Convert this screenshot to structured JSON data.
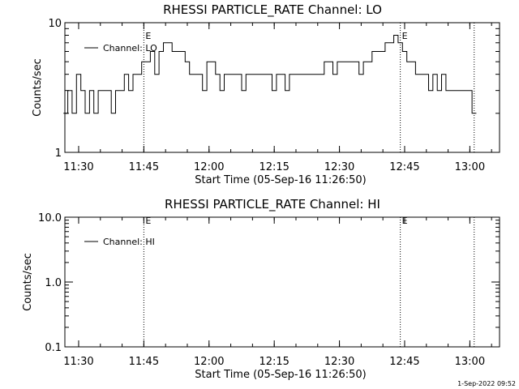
{
  "footer_timestamp": "1-Sep-2022 09:52",
  "chart_data": [
    {
      "type": "line",
      "title": "RHESSI PARTICLE_RATE Channel: LO",
      "xlabel": "Start Time (05-Sep-16 11:26:50)",
      "ylabel": "Counts/sec",
      "yscale": "log",
      "ylim": [
        1,
        10
      ],
      "ytick_values": [
        1,
        10
      ],
      "ytick_labels": [
        "1",
        "10"
      ],
      "xlim": [
        "11:26:50",
        "13:06:50"
      ],
      "xtick_values": [
        "11:30",
        "11:45",
        "12:00",
        "12:15",
        "12:30",
        "12:45",
        "13:00"
      ],
      "xtick_labels": [
        "11:30",
        "11:45",
        "12:00",
        "12:15",
        "12:30",
        "12:45",
        "13:00"
      ],
      "markers": [
        {
          "time": "11:45",
          "label": "E"
        },
        {
          "time": "12:44",
          "label": "E"
        },
        {
          "time": "13:01",
          "label": ""
        }
      ],
      "series": [
        {
          "name": "Channel: LO",
          "x": [
            "11:27",
            "11:28",
            "11:29",
            "11:30",
            "11:31",
            "11:32",
            "11:33",
            "11:34",
            "11:35",
            "11:36",
            "11:37",
            "11:38",
            "11:39",
            "11:40",
            "11:41",
            "11:42",
            "11:43",
            "11:44",
            "11:45",
            "11:46",
            "11:47",
            "11:48",
            "11:49",
            "11:50",
            "11:51",
            "11:52",
            "11:53",
            "11:54",
            "11:55",
            "11:56",
            "11:57",
            "11:58",
            "11:59",
            "12:00",
            "12:01",
            "12:02",
            "12:03",
            "12:04",
            "12:05",
            "12:06",
            "12:07",
            "12:08",
            "12:09",
            "12:10",
            "12:11",
            "12:12",
            "12:13",
            "12:14",
            "12:15",
            "12:16",
            "12:17",
            "12:18",
            "12:19",
            "12:20",
            "12:21",
            "12:22",
            "12:23",
            "12:24",
            "12:25",
            "12:26",
            "12:27",
            "12:28",
            "12:29",
            "12:30",
            "12:31",
            "12:32",
            "12:33",
            "12:34",
            "12:35",
            "12:36",
            "12:37",
            "12:38",
            "12:39",
            "12:40",
            "12:41",
            "12:42",
            "12:43",
            "12:44",
            "12:45",
            "12:46",
            "12:47",
            "12:48",
            "12:49",
            "12:50",
            "12:51",
            "12:52",
            "12:53",
            "12:54",
            "12:55",
            "12:56",
            "12:57",
            "12:58",
            "12:59",
            "13:00",
            "13:01"
          ],
          "values": [
            2,
            3,
            2,
            4,
            3,
            2,
            3,
            2,
            3,
            3,
            3,
            2,
            3,
            3,
            4,
            3,
            4,
            4,
            5,
            5,
            6,
            4,
            6,
            7,
            7,
            6,
            6,
            6,
            5,
            4,
            4,
            4,
            3,
            5,
            5,
            4,
            3,
            4,
            4,
            4,
            4,
            3,
            4,
            4,
            4,
            4,
            4,
            4,
            3,
            4,
            4,
            3,
            4,
            4,
            4,
            4,
            4,
            4,
            4,
            4,
            5,
            5,
            4,
            5,
            5,
            5,
            5,
            5,
            4,
            5,
            5,
            6,
            6,
            6,
            7,
            7,
            8,
            7,
            6,
            5,
            5,
            4,
            4,
            4,
            3,
            4,
            3,
            4,
            3,
            3,
            3,
            3,
            3,
            3,
            2
          ]
        }
      ]
    },
    {
      "type": "line",
      "title": "RHESSI PARTICLE_RATE Channel: HI",
      "xlabel": "Start Time (05-Sep-16 11:26:50)",
      "ylabel": "Counts/sec",
      "yscale": "log",
      "ylim": [
        0.1,
        10
      ],
      "ytick_values": [
        0.1,
        1,
        10
      ],
      "ytick_labels": [
        "0.1",
        "1.0",
        "10.0"
      ],
      "xlim": [
        "11:26:50",
        "13:06:50"
      ],
      "xtick_values": [
        "11:30",
        "11:45",
        "12:00",
        "12:15",
        "12:30",
        "12:45",
        "13:00"
      ],
      "xtick_labels": [
        "11:30",
        "11:45",
        "12:00",
        "12:15",
        "12:30",
        "12:45",
        "13:00"
      ],
      "markers": [
        {
          "time": "11:45",
          "label": "E"
        },
        {
          "time": "12:44",
          "label": "E"
        },
        {
          "time": "13:01",
          "label": ""
        }
      ],
      "series": [
        {
          "name": "Channel: HI",
          "x": [],
          "values": []
        }
      ]
    }
  ]
}
